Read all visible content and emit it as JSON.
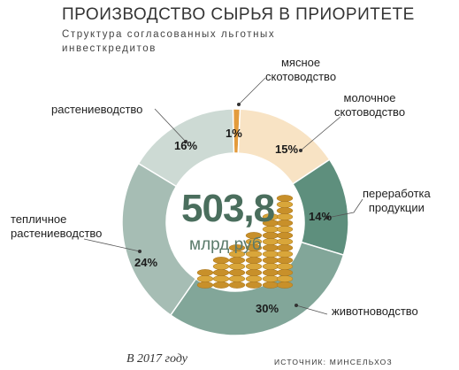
{
  "header": {
    "title": "ПРОИЗВОДСТВО СЫРЬЯ В ПРИОРИТЕТЕ",
    "subtitle": "Структура согласованных льготных инвесткредитов"
  },
  "center": {
    "value": "503,8",
    "unit": "млрд руб"
  },
  "footer": {
    "note": "В 2017 году",
    "source": "ИСТОЧНИК: МИНСЕЛЬХОЗ"
  },
  "chart_data": {
    "type": "pie",
    "title": "ПРОИЗВОДСТВО СЫРЬЯ В ПРИОРИТЕТЕ",
    "unit": "%",
    "total": "503,8 млрд руб",
    "slices": [
      {
        "label": "мясное скотоводство",
        "value": 1,
        "value_label": "1%",
        "color": "#e39b3c"
      },
      {
        "label": "молочное скотоводство",
        "value": 15,
        "value_label": "15%",
        "color": "#f8e3c4"
      },
      {
        "label": "переработка продукции",
        "value": 14,
        "value_label": "14%",
        "color": "#5e8f7d"
      },
      {
        "label": "животноводство",
        "value": 30,
        "value_label": "30%",
        "color": "#82a699"
      },
      {
        "label": "тепличное растениеводство",
        "value": 24,
        "value_label": "24%",
        "color": "#a6bdb4"
      },
      {
        "label": "растениеводство",
        "value": 16,
        "value_label": "16%",
        "color": "#cddad4"
      }
    ]
  }
}
